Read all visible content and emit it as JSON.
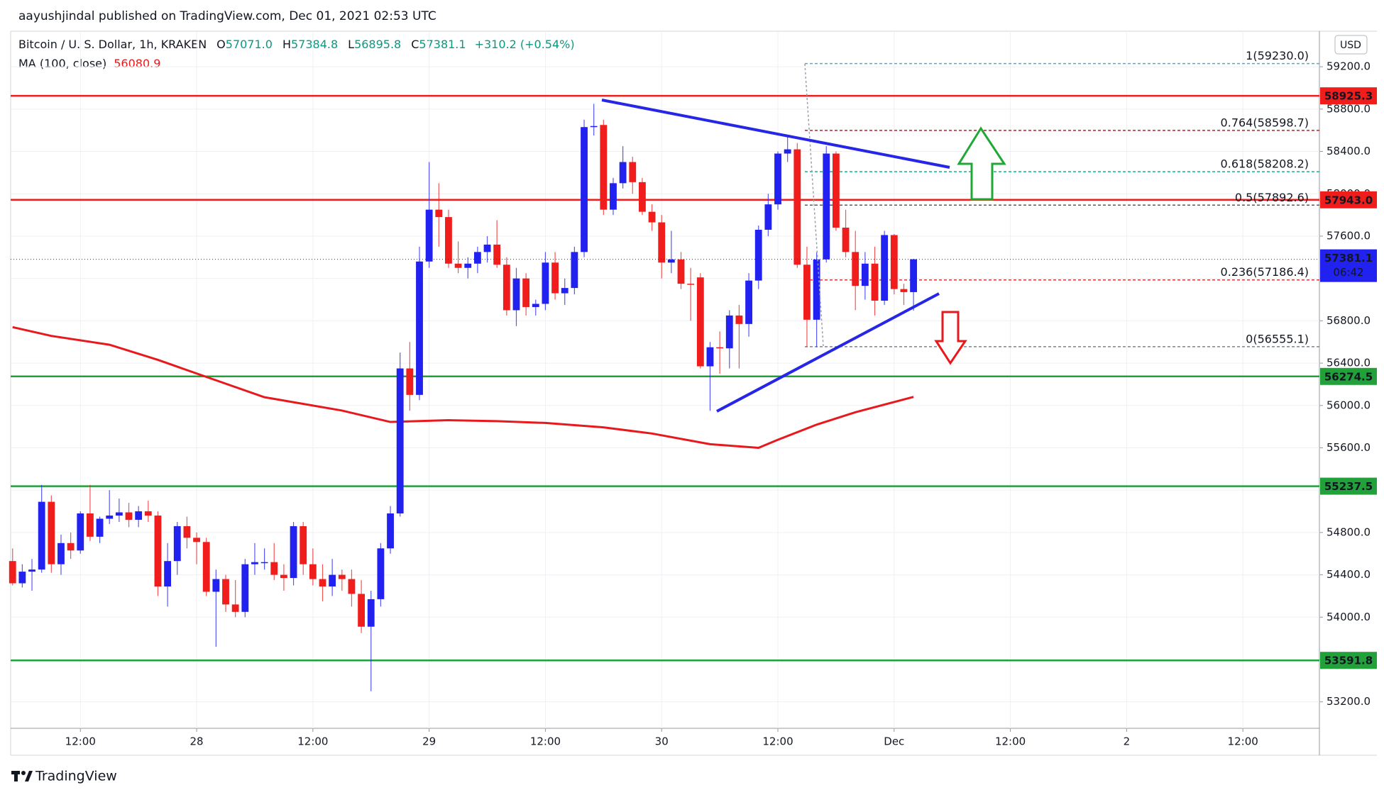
{
  "header": "aayushjindal published on TradingView.com, Dec 01, 2021 02:53 UTC",
  "footer": "TradingView",
  "chart_data": {
    "type": "candlestick",
    "legend": {
      "symbol": "Bitcoin / U. S. Dollar, 1h, KRAKEN",
      "ohlc": [
        {
          "key": "O",
          "value": "57071.0"
        },
        {
          "key": "H",
          "value": "57384.8"
        },
        {
          "key": "L",
          "value": "56895.8"
        },
        {
          "key": "C",
          "value": "57381.1"
        }
      ],
      "change": "+310.2 (+0.54%)"
    },
    "currency": "USD",
    "countdown": "06:42",
    "up_color": "#2121f0",
    "down_color": "#f01d1d",
    "open": [
      54530,
      54320,
      54430,
      54450,
      55090,
      54500,
      54700,
      54630,
      54980,
      54760,
      54930,
      54960,
      54990,
      54920,
      55000,
      54960,
      54290,
      54530,
      54860,
      54750,
      54710,
      54240,
      54360,
      54120,
      54050,
      54500,
      54520,
      54520,
      54400,
      54370,
      54860,
      54500,
      54360,
      54290,
      54400,
      54360,
      54220,
      53910,
      54170,
      54650,
      54980,
      56350,
      56100,
      57360,
      57850,
      57780,
      57340,
      57300,
      57340,
      57450,
      57520,
      57330,
      56900,
      57200,
      56930,
      56960,
      57350,
      57060,
      57110,
      57450,
      58630,
      58650,
      57850,
      58100,
      58300,
      58110,
      57830,
      57730,
      57350,
      57380,
      57150,
      57210,
      56370,
      56550,
      56540,
      56850,
      56770,
      57180,
      57660,
      57900,
      58380,
      58420,
      57330,
      56810,
      57380,
      58380,
      57680,
      57450,
      57130,
      57340,
      56990,
      57610,
      57100,
      57071.0
    ],
    "high": [
      54650,
      54500,
      54550,
      55250,
      55150,
      54780,
      54800,
      55000,
      55250,
      54950,
      55200,
      55120,
      55080,
      55050,
      55100,
      55000,
      54700,
      54900,
      54950,
      54800,
      54750,
      54450,
      54400,
      54350,
      54550,
      54700,
      54650,
      54700,
      54500,
      54900,
      54900,
      54650,
      54500,
      54550,
      54450,
      54450,
      54350,
      54250,
      54700,
      55050,
      56500,
      56600,
      57500,
      58300,
      58100,
      57850,
      57550,
      57400,
      57500,
      57600,
      57750,
      57400,
      57300,
      57250,
      57000,
      57450,
      57450,
      57200,
      57500,
      58700,
      58850,
      58700,
      58150,
      58450,
      58350,
      58150,
      57900,
      57800,
      57650,
      57450,
      57300,
      57250,
      56600,
      56700,
      56900,
      56950,
      57250,
      57700,
      58000,
      58400,
      58550,
      58480,
      57500,
      57450,
      58450,
      58400,
      57850,
      57650,
      57450,
      57500,
      57650,
      57620,
      57150,
      57384.8
    ],
    "low": [
      54300,
      54280,
      54250,
      54420,
      54420,
      54400,
      54550,
      54600,
      54720,
      54700,
      54880,
      54900,
      54850,
      54850,
      54900,
      54200,
      54100,
      54400,
      54650,
      54500,
      54200,
      53720,
      54050,
      54000,
      54000,
      54400,
      54450,
      54350,
      54250,
      54300,
      54400,
      54300,
      54150,
      54200,
      54250,
      54100,
      53850,
      53300,
      54100,
      54600,
      54950,
      55950,
      56050,
      57300,
      57500,
      57300,
      57250,
      57200,
      57250,
      57350,
      57300,
      56850,
      56750,
      56850,
      56850,
      56900,
      57000,
      56950,
      57050,
      57400,
      58550,
      57800,
      57800,
      58050,
      58000,
      57800,
      57650,
      57200,
      57250,
      57100,
      56800,
      56350,
      55950,
      56300,
      56350,
      56350,
      56650,
      57100,
      57600,
      57850,
      58300,
      57300,
      56550,
      56550,
      57350,
      57650,
      57400,
      56900,
      57000,
      56850,
      56950,
      57050,
      56950,
      56895.8
    ],
    "close": [
      54320,
      54430,
      54450,
      55090,
      54500,
      54700,
      54630,
      54980,
      54760,
      54930,
      54960,
      54990,
      54920,
      55000,
      54960,
      54290,
      54530,
      54860,
      54750,
      54710,
      54240,
      54360,
      54120,
      54050,
      54500,
      54520,
      54520,
      54400,
      54370,
      54860,
      54500,
      54360,
      54290,
      54400,
      54360,
      54220,
      53910,
      54170,
      54650,
      54980,
      56350,
      56100,
      57360,
      57850,
      57780,
      57340,
      57300,
      57340,
      57450,
      57520,
      57330,
      56900,
      57200,
      56930,
      56960,
      57350,
      57060,
      57110,
      57450,
      58630,
      58640,
      57850,
      58100,
      58300,
      58110,
      57830,
      57730,
      57350,
      57380,
      57150,
      57140,
      56370,
      56550,
      56540,
      56850,
      56770,
      57180,
      57660,
      57900,
      58380,
      58420,
      57330,
      56810,
      57380,
      58380,
      57680,
      57450,
      57130,
      57340,
      56990,
      57610,
      57100,
      57071,
      57381.1
    ],
    "ma": {
      "name": "MA (100, close)",
      "color": "#e8191c",
      "x": [
        0,
        4,
        10,
        15,
        21,
        26,
        34,
        39,
        45,
        50,
        55,
        61,
        66,
        72,
        77,
        79,
        83,
        87,
        93
      ],
      "values": [
        56740,
        56657,
        56574,
        56431,
        56238,
        56078,
        55952,
        55844,
        55861,
        55852,
        55835,
        55793,
        55735,
        55634,
        55600,
        55676,
        55819,
        55936,
        56080.9
      ]
    },
    "levels": [
      {
        "value": 58925.3,
        "color": "#f01d1d"
      },
      {
        "value": 57943.0,
        "label": "57943.0",
        "color": "#f01d1d"
      },
      {
        "value": 56274.5,
        "color": "#22a03a"
      },
      {
        "value": 55237.5,
        "color": "#22a03a"
      },
      {
        "value": 53591.8,
        "color": "#22a03a"
      }
    ],
    "fib": [
      {
        "label": "1(59230.0)",
        "value": 59230.0,
        "color": "#5aa9c8"
      },
      {
        "label": "0.764(58598.7)",
        "value": 58598.7,
        "color": "#c21d1d"
      },
      {
        "label": "0.618(58208.2)",
        "value": 58208.2,
        "color": "#1fae8e"
      },
      {
        "label": "0.5(57892.6)",
        "value": 57892.6,
        "color": "#555b66"
      },
      {
        "label": "0.236(57186.4)",
        "value": 57186.4,
        "color": "#d33a3a"
      },
      {
        "label": "0(56555.1)",
        "value": 56555.1,
        "color": "#7d828c"
      }
    ],
    "ylim": [
      52950,
      59536
    ],
    "yticks": [
      {
        "value": 53200,
        "label": "53200.0"
      },
      {
        "value": 53600,
        "label": "53600.0"
      },
      {
        "value": 54000,
        "label": "54000.0"
      },
      {
        "value": 54400,
        "label": "54400.0"
      },
      {
        "value": 54800,
        "label": "54800.0"
      },
      {
        "value": 55200,
        "label": "55200.0"
      },
      {
        "value": 55600,
        "label": "55600.0"
      },
      {
        "value": 56000,
        "label": "56000.0"
      },
      {
        "value": 56400,
        "label": "56400.0"
      },
      {
        "value": 56800,
        "label": "56800.0"
      },
      {
        "value": 57200,
        "label": "57200.0"
      },
      {
        "value": 57600,
        "label": "57600.0"
      },
      {
        "value": 58000,
        "label": "58000.0"
      },
      {
        "value": 58400,
        "label": "58400.0"
      },
      {
        "value": 58800,
        "label": "58800.0"
      },
      {
        "value": 59200,
        "label": "59200.0"
      }
    ],
    "xlim": [
      -0.2,
      134.9
    ],
    "xticks": [
      {
        "value": 7,
        "label": "12:00"
      },
      {
        "value": 19,
        "label": "28"
      },
      {
        "value": 31,
        "label": "12:00"
      },
      {
        "value": 43,
        "label": "29"
      },
      {
        "value": 55,
        "label": "12:00"
      },
      {
        "value": 67,
        "label": "30"
      },
      {
        "value": 79,
        "label": "12:00"
      },
      {
        "value": 91,
        "label": "Dec"
      },
      {
        "value": 103,
        "label": "12:00"
      },
      {
        "value": 115,
        "label": "2"
      },
      {
        "value": 127,
        "label": "12:00"
      }
    ],
    "grid": true
  }
}
